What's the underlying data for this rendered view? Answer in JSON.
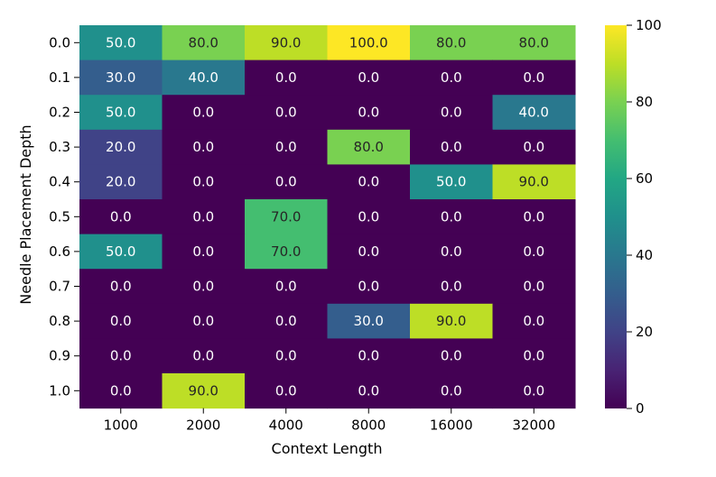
{
  "chart_data": {
    "type": "heatmap",
    "xlabel": "Context Length",
    "ylabel": "Needle Placement Depth",
    "x_categories": [
      "1000",
      "2000",
      "4000",
      "8000",
      "16000",
      "32000"
    ],
    "y_categories": [
      "0.0",
      "0.1",
      "0.2",
      "0.3",
      "0.4",
      "0.5",
      "0.6",
      "0.7",
      "0.8",
      "0.9",
      "1.0"
    ],
    "values": [
      [
        50,
        80,
        90,
        100,
        80,
        80
      ],
      [
        30,
        40,
        0,
        0,
        0,
        0
      ],
      [
        50,
        0,
        0,
        0,
        0,
        40
      ],
      [
        20,
        0,
        0,
        80,
        0,
        0
      ],
      [
        20,
        0,
        0,
        0,
        50,
        90
      ],
      [
        0,
        0,
        70,
        0,
        0,
        0
      ],
      [
        50,
        0,
        70,
        0,
        0,
        0
      ],
      [
        0,
        0,
        0,
        0,
        0,
        0
      ],
      [
        0,
        0,
        0,
        30,
        90,
        0
      ],
      [
        0,
        0,
        0,
        0,
        0,
        0
      ],
      [
        0,
        90,
        0,
        0,
        0,
        0
      ]
    ],
    "value_format": "one-decimal",
    "colormap": "viridis",
    "vmin": 0,
    "vmax": 100,
    "colorbar_ticks": [
      "0",
      "20",
      "40",
      "60",
      "80",
      "100"
    ],
    "grid": false
  }
}
